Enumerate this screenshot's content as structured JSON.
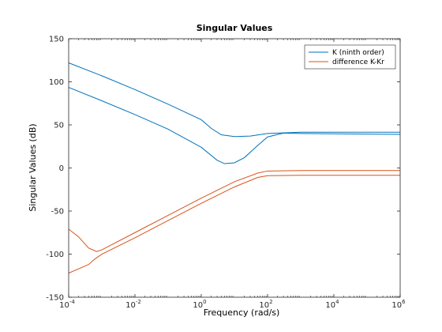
{
  "chart_data": {
    "type": "line",
    "title": "Singular Values",
    "xlabel": "Frequency (rad/s)",
    "ylabel": "Singular Values (dB)",
    "xscale": "log",
    "xlim": [
      0.0001,
      1000000
    ],
    "ylim": [
      -150,
      150
    ],
    "x_ticks": [
      {
        "value": 0.0001,
        "base": "10",
        "exp": "-4"
      },
      {
        "value": 0.01,
        "base": "10",
        "exp": "-2"
      },
      {
        "value": 1,
        "base": "10",
        "exp": "0"
      },
      {
        "value": 100,
        "base": "10",
        "exp": "2"
      },
      {
        "value": 10000,
        "base": "10",
        "exp": "4"
      },
      {
        "value": 1000000,
        "base": "10",
        "exp": "6"
      }
    ],
    "y_ticks": [
      "-150",
      "-100",
      "-50",
      "0",
      "50",
      "100",
      "150"
    ],
    "grid": false,
    "legend_position": "top-right",
    "series": [
      {
        "name": "K (ninth order)",
        "color": "#0072bd",
        "show_in_legend": true,
        "points": [
          [
            0.0001,
            122
          ],
          [
            0.001,
            107
          ],
          [
            0.01,
            91
          ],
          [
            0.1,
            74
          ],
          [
            1,
            56
          ],
          [
            2,
            46
          ],
          [
            4,
            38.5
          ],
          [
            10,
            36.5
          ],
          [
            30,
            37
          ],
          [
            100,
            40
          ],
          [
            1000,
            41.5
          ],
          [
            1000000,
            41.5
          ]
        ]
      },
      {
        "name": "K (ninth order)",
        "color": "#0072bd",
        "show_in_legend": false,
        "points": [
          [
            0.0001,
            93.5
          ],
          [
            0.001,
            78
          ],
          [
            0.01,
            62
          ],
          [
            0.1,
            45
          ],
          [
            1,
            24
          ],
          [
            3,
            9
          ],
          [
            5,
            5
          ],
          [
            10,
            6
          ],
          [
            20,
            12
          ],
          [
            50,
            26
          ],
          [
            100,
            36
          ],
          [
            300,
            40.5
          ],
          [
            1000,
            40
          ],
          [
            1000000,
            39
          ]
        ]
      },
      {
        "name": "difference K-Kr",
        "color": "#d95319",
        "show_in_legend": true,
        "points": [
          [
            0.0001,
            -71
          ],
          [
            0.0002,
            -80
          ],
          [
            0.0004,
            -93
          ],
          [
            0.0007,
            -97
          ],
          [
            0.001,
            -95
          ],
          [
            0.01,
            -75
          ],
          [
            0.1,
            -55
          ],
          [
            1,
            -35
          ],
          [
            10,
            -16
          ],
          [
            50,
            -6
          ],
          [
            100,
            -3.5
          ],
          [
            1000,
            -3
          ],
          [
            1000000,
            -3
          ]
        ]
      },
      {
        "name": "difference K-Kr",
        "color": "#d95319",
        "show_in_legend": false,
        "points": [
          [
            0.0001,
            -122
          ],
          [
            0.0002,
            -117
          ],
          [
            0.0004,
            -112
          ],
          [
            0.0006,
            -106
          ],
          [
            0.001,
            -100
          ],
          [
            0.01,
            -81
          ],
          [
            0.1,
            -61
          ],
          [
            1,
            -41
          ],
          [
            10,
            -22
          ],
          [
            50,
            -11
          ],
          [
            100,
            -9
          ],
          [
            1000,
            -8.5
          ],
          [
            1000000,
            -8.5
          ]
        ]
      }
    ]
  }
}
